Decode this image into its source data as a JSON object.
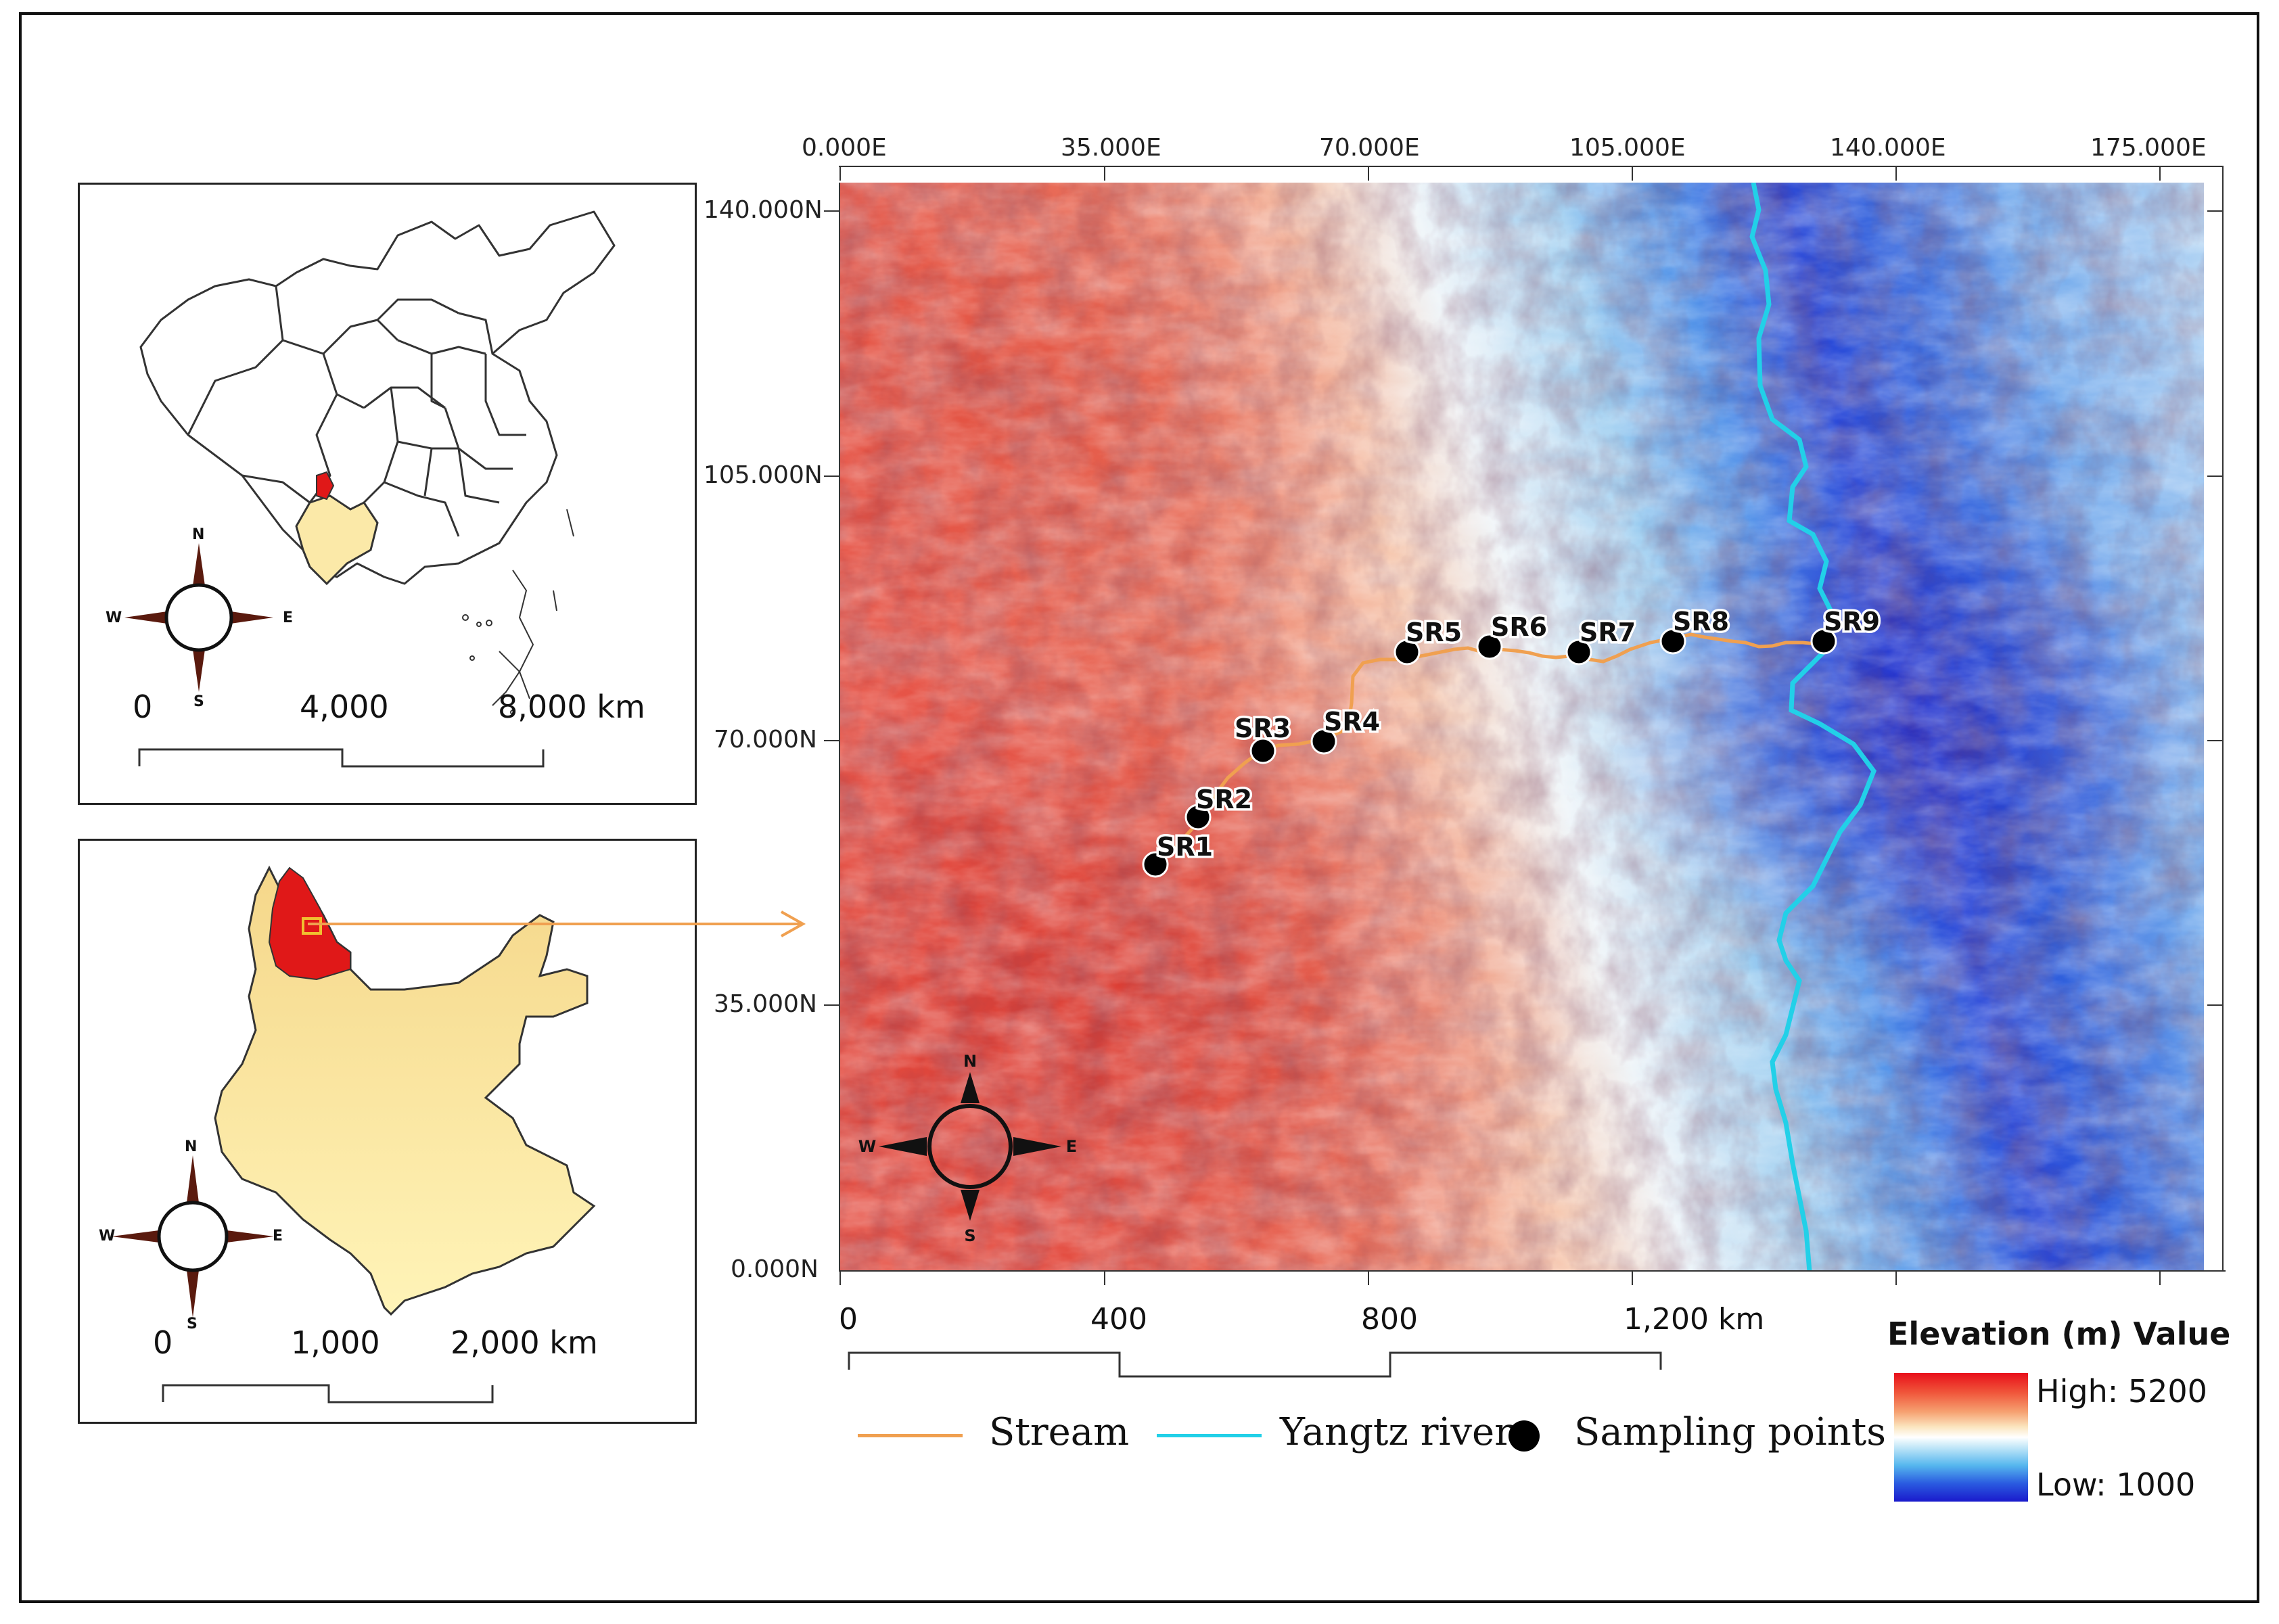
{
  "inset_china": {
    "scale_labels": [
      "0",
      "4,000",
      "8,000 km"
    ],
    "compass": {
      "n": "N",
      "s": "S",
      "e": "E",
      "w": "W"
    }
  },
  "inset_yunnan": {
    "scale_labels": [
      "0",
      "1,000",
      "2,000 km"
    ],
    "compass": {
      "n": "N",
      "s": "S",
      "e": "E",
      "w": "W"
    }
  },
  "main_map": {
    "top_axis": [
      "0.000E",
      "35.000E",
      "70.000E",
      "105.000E",
      "140.000E",
      "175.000E"
    ],
    "left_axis": [
      "140.000N",
      "105.000N",
      "70.000N",
      "35.000N",
      "0.000N"
    ],
    "compass": {
      "n": "N",
      "s": "S",
      "e": "E",
      "w": "W"
    },
    "sampling_points": [
      "SR1",
      "SR2",
      "SR3",
      "SR4",
      "SR5",
      "SR6",
      "SR7",
      "SR8",
      "SR9"
    ],
    "scale_labels": [
      "0",
      "400",
      "800",
      "1,200 km"
    ]
  },
  "legend": {
    "stream": "Stream",
    "river": "Yangtz river",
    "points": "Sampling points",
    "stream_color": "#f0a050",
    "river_color": "#22d0e8"
  },
  "elevation": {
    "title": "Elevation (m) Value",
    "high": "High: 5200",
    "low": "Low: 1000",
    "high_color": "#e8101a",
    "low_color": "#1a1acc"
  }
}
